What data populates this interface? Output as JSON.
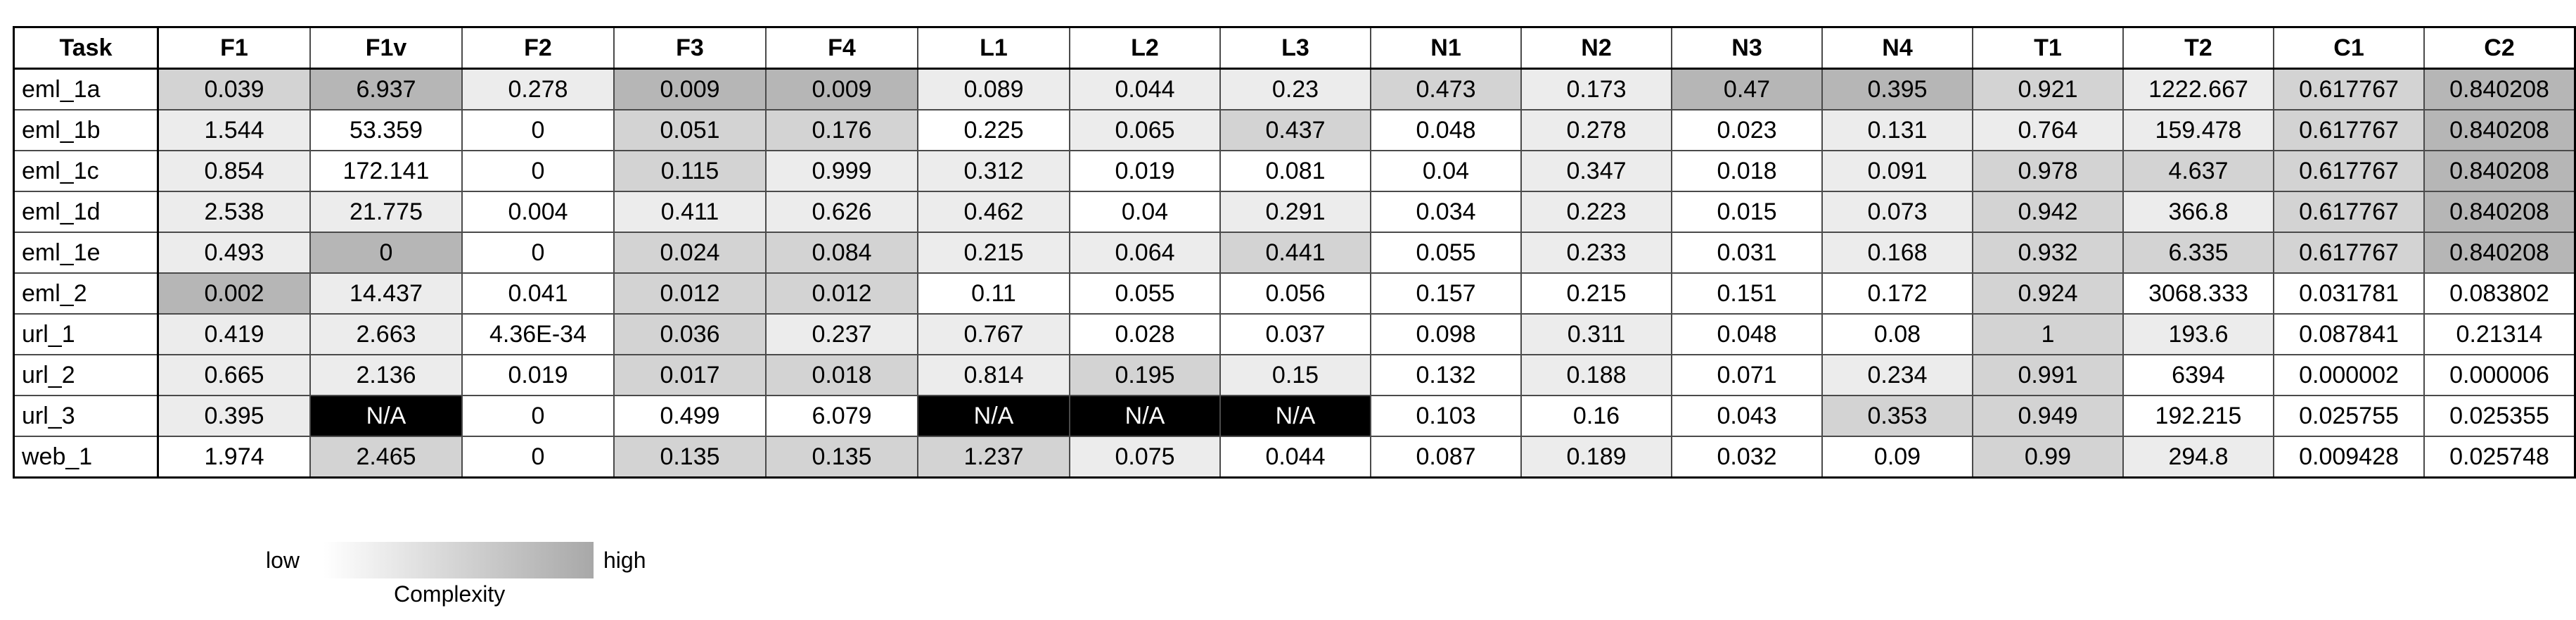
{
  "table": {
    "columns": [
      "Task",
      "F1",
      "F1v",
      "F2",
      "F3",
      "F4",
      "L1",
      "L2",
      "L3",
      "N1",
      "N2",
      "N3",
      "N4",
      "T1",
      "T2",
      "C1",
      "C2"
    ],
    "rows": [
      [
        "eml_1a",
        "0.039",
        "6.937",
        "0.278",
        "0.009",
        "0.009",
        "0.089",
        "0.044",
        "0.23",
        "0.473",
        "0.173",
        "0.47",
        "0.395",
        "0.921",
        "1222.667",
        "0.617767",
        "0.840208"
      ],
      [
        "eml_1b",
        "1.544",
        "53.359",
        "0",
        "0.051",
        "0.176",
        "0.225",
        "0.065",
        "0.437",
        "0.048",
        "0.278",
        "0.023",
        "0.131",
        "0.764",
        "159.478",
        "0.617767",
        "0.840208"
      ],
      [
        "eml_1c",
        "0.854",
        "172.141",
        "0",
        "0.115",
        "0.999",
        "0.312",
        "0.019",
        "0.081",
        "0.04",
        "0.347",
        "0.018",
        "0.091",
        "0.978",
        "4.637",
        "0.617767",
        "0.840208"
      ],
      [
        "eml_1d",
        "2.538",
        "21.775",
        "0.004",
        "0.411",
        "0.626",
        "0.462",
        "0.04",
        "0.291",
        "0.034",
        "0.223",
        "0.015",
        "0.073",
        "0.942",
        "366.8",
        "0.617767",
        "0.840208"
      ],
      [
        "eml_1e",
        "0.493",
        "0",
        "0",
        "0.024",
        "0.084",
        "0.215",
        "0.064",
        "0.441",
        "0.055",
        "0.233",
        "0.031",
        "0.168",
        "0.932",
        "6.335",
        "0.617767",
        "0.840208"
      ],
      [
        "eml_2",
        "0.002",
        "14.437",
        "0.041",
        "0.012",
        "0.012",
        "0.11",
        "0.055",
        "0.056",
        "0.157",
        "0.215",
        "0.151",
        "0.172",
        "0.924",
        "3068.333",
        "0.031781",
        "0.083802"
      ],
      [
        "url_1",
        "0.419",
        "2.663",
        "4.36E-34",
        "0.036",
        "0.237",
        "0.767",
        "0.028",
        "0.037",
        "0.098",
        "0.311",
        "0.048",
        "0.08",
        "1",
        "193.6",
        "0.087841",
        "0.21314"
      ],
      [
        "url_2",
        "0.665",
        "2.136",
        "0.019",
        "0.017",
        "0.018",
        "0.814",
        "0.195",
        "0.15",
        "0.132",
        "0.188",
        "0.071",
        "0.234",
        "0.991",
        "6394",
        "0.000002",
        "0.000006"
      ],
      [
        "url_3",
        "0.395",
        "N/A",
        "0",
        "0.499",
        "6.079",
        "N/A",
        "N/A",
        "N/A",
        "0.103",
        "0.16",
        "0.043",
        "0.353",
        "0.949",
        "192.215",
        "0.025755",
        "0.025355"
      ],
      [
        "web_1",
        "1.974",
        "2.465",
        "0",
        "0.135",
        "0.135",
        "1.237",
        "0.075",
        "0.044",
        "0.087",
        "0.189",
        "0.032",
        "0.09",
        "0.99",
        "294.8",
        "0.009428",
        "0.025748"
      ]
    ],
    "shade_levels": [
      [
        2,
        3,
        1,
        3,
        3,
        1,
        1,
        1,
        2,
        1,
        3,
        3,
        2,
        1,
        2,
        3
      ],
      [
        1,
        0,
        0,
        2,
        2,
        0,
        1,
        2,
        0,
        1,
        0,
        1,
        1,
        1,
        2,
        3
      ],
      [
        1,
        0,
        0,
        2,
        1,
        1,
        0,
        0,
        0,
        1,
        0,
        1,
        2,
        2,
        2,
        3
      ],
      [
        1,
        1,
        0,
        1,
        1,
        1,
        0,
        1,
        0,
        1,
        0,
        1,
        2,
        1,
        2,
        3
      ],
      [
        1,
        3,
        0,
        2,
        2,
        1,
        1,
        2,
        0,
        1,
        0,
        1,
        2,
        2,
        2,
        3
      ],
      [
        3,
        1,
        0,
        2,
        2,
        0,
        0,
        0,
        0,
        0,
        0,
        0,
        2,
        0,
        0,
        0
      ],
      [
        1,
        1,
        0,
        2,
        1,
        1,
        0,
        0,
        0,
        1,
        0,
        0,
        2,
        1,
        0,
        0
      ],
      [
        1,
        1,
        0,
        2,
        2,
        1,
        2,
        1,
        0,
        1,
        0,
        1,
        2,
        0,
        0,
        0
      ],
      [
        1,
        -1,
        0,
        0,
        0,
        -1,
        -1,
        -1,
        0,
        0,
        0,
        2,
        2,
        0,
        0,
        0
      ],
      [
        0,
        2,
        0,
        2,
        2,
        2,
        1,
        0,
        0,
        1,
        0,
        0,
        2,
        1,
        0,
        0
      ]
    ],
    "shade_colors": [
      "#ffffff",
      "#ececec",
      "#d3d3d3",
      "#b6b6b6"
    ]
  },
  "legend": {
    "low": "low",
    "high": "high",
    "title": "Complexity"
  }
}
